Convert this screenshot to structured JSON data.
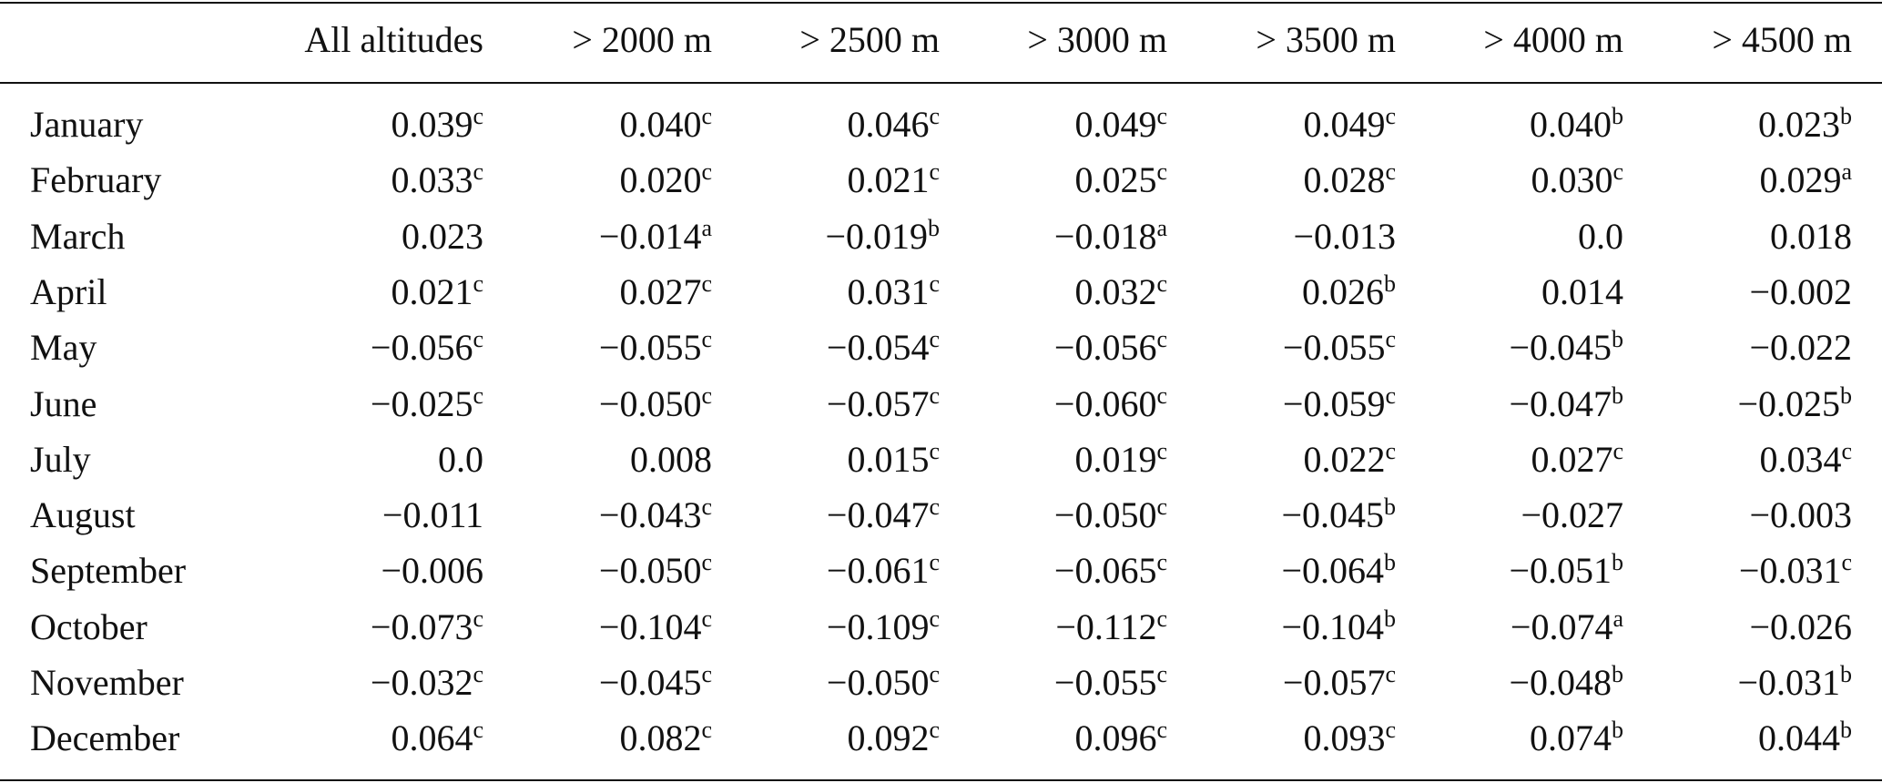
{
  "table": {
    "header": [
      "All altitudes",
      "> 2000 m",
      "> 2500 m",
      "> 3000 m",
      "> 3500 m",
      "> 4000 m",
      "> 4500 m"
    ],
    "rows": [
      {
        "label": "January",
        "cells": [
          [
            "0.039",
            "c"
          ],
          [
            "0.040",
            "c"
          ],
          [
            "0.046",
            "c"
          ],
          [
            "0.049",
            "c"
          ],
          [
            "0.049",
            "c"
          ],
          [
            "0.040",
            "b"
          ],
          [
            "0.023",
            "b"
          ]
        ]
      },
      {
        "label": "February",
        "cells": [
          [
            "0.033",
            "c"
          ],
          [
            "0.020",
            "c"
          ],
          [
            "0.021",
            "c"
          ],
          [
            "0.025",
            "c"
          ],
          [
            "0.028",
            "c"
          ],
          [
            "0.030",
            "c"
          ],
          [
            "0.029",
            "a"
          ]
        ]
      },
      {
        "label": "March",
        "cells": [
          [
            "0.023"
          ],
          [
            "−0.014",
            "a"
          ],
          [
            "−0.019",
            "b"
          ],
          [
            "−0.018",
            "a"
          ],
          [
            "−0.013"
          ],
          [
            "0.0"
          ],
          [
            "0.018"
          ]
        ]
      },
      {
        "label": "April",
        "cells": [
          [
            "0.021",
            "c"
          ],
          [
            "0.027",
            "c"
          ],
          [
            "0.031",
            "c"
          ],
          [
            "0.032",
            "c"
          ],
          [
            "0.026",
            "b"
          ],
          [
            "0.014"
          ],
          [
            "−0.002"
          ]
        ]
      },
      {
        "label": "May",
        "cells": [
          [
            "−0.056",
            "c"
          ],
          [
            "−0.055",
            "c"
          ],
          [
            "−0.054",
            "c"
          ],
          [
            "−0.056",
            "c"
          ],
          [
            "−0.055",
            "c"
          ],
          [
            "−0.045",
            "b"
          ],
          [
            "−0.022"
          ]
        ]
      },
      {
        "label": "June",
        "cells": [
          [
            "−0.025",
            "c"
          ],
          [
            "−0.050",
            "c"
          ],
          [
            "−0.057",
            "c"
          ],
          [
            "−0.060",
            "c"
          ],
          [
            "−0.059",
            "c"
          ],
          [
            "−0.047",
            "b"
          ],
          [
            "−0.025",
            "b"
          ]
        ]
      },
      {
        "label": "July",
        "cells": [
          [
            "0.0"
          ],
          [
            "0.008"
          ],
          [
            "0.015",
            "c"
          ],
          [
            "0.019",
            "c"
          ],
          [
            "0.022",
            "c"
          ],
          [
            "0.027",
            "c"
          ],
          [
            "0.034",
            "c"
          ]
        ]
      },
      {
        "label": "August",
        "cells": [
          [
            "−0.011"
          ],
          [
            "−0.043",
            "c"
          ],
          [
            "−0.047",
            "c"
          ],
          [
            "−0.050",
            "c"
          ],
          [
            "−0.045",
            "b"
          ],
          [
            "−0.027"
          ],
          [
            "−0.003"
          ]
        ]
      },
      {
        "label": "September",
        "cells": [
          [
            "−0.006"
          ],
          [
            "−0.050",
            "c"
          ],
          [
            "−0.061",
            "c"
          ],
          [
            "−0.065",
            "c"
          ],
          [
            "−0.064",
            "b"
          ],
          [
            "−0.051",
            "b"
          ],
          [
            "−0.031",
            "c"
          ]
        ]
      },
      {
        "label": "October",
        "cells": [
          [
            "−0.073",
            "c"
          ],
          [
            "−0.104",
            "c"
          ],
          [
            "−0.109",
            "c"
          ],
          [
            "−0.112",
            "c"
          ],
          [
            "−0.104",
            "b"
          ],
          [
            "−0.074",
            "a"
          ],
          [
            "−0.026"
          ]
        ]
      },
      {
        "label": "November",
        "cells": [
          [
            "−0.032",
            "c"
          ],
          [
            "−0.045",
            "c"
          ],
          [
            "−0.050",
            "c"
          ],
          [
            "−0.055",
            "c"
          ],
          [
            "−0.057",
            "c"
          ],
          [
            "−0.048",
            "b"
          ],
          [
            "−0.031",
            "b"
          ]
        ]
      },
      {
        "label": "December",
        "cells": [
          [
            "0.064",
            "c"
          ],
          [
            "0.082",
            "c"
          ],
          [
            "0.092",
            "c"
          ],
          [
            "0.096",
            "c"
          ],
          [
            "0.093",
            "c"
          ],
          [
            "0.074",
            "b"
          ],
          [
            "0.044",
            "b"
          ]
        ]
      }
    ]
  }
}
